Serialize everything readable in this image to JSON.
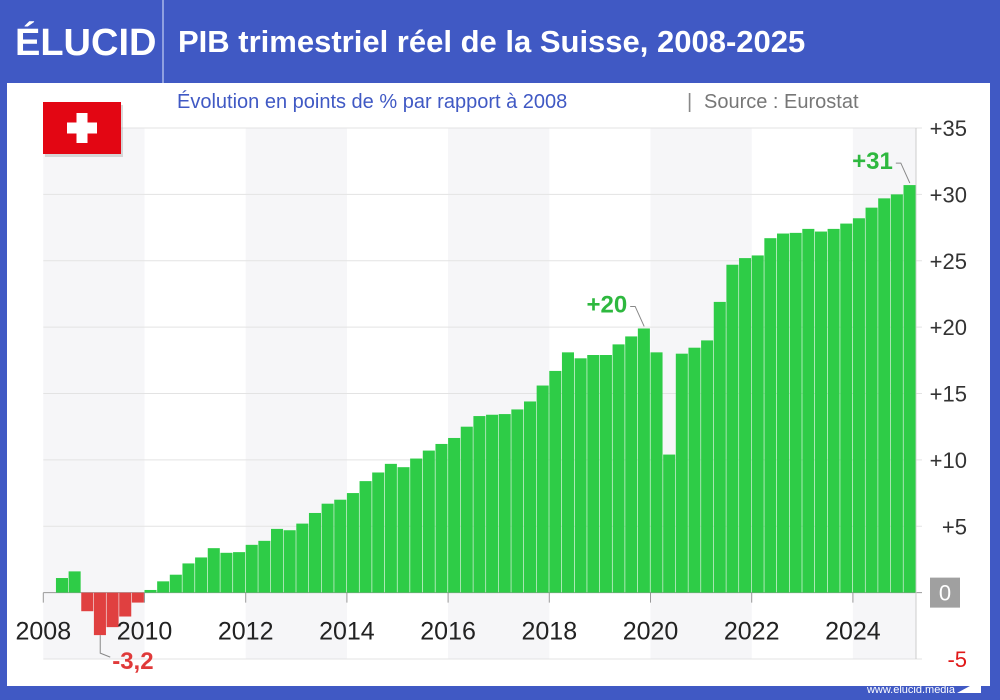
{
  "header": {
    "logo": "ÉLUCID",
    "title": "PIB trimestriel réel de la Suisse, 2008-2025"
  },
  "footer": {
    "url": "www.elucid.media"
  },
  "colors": {
    "brand": "#4059c4",
    "positive": "#2ecc47",
    "negative": "#e04040",
    "annotation_positive": "#2eb83f",
    "annotation_negative": "#e03a3a",
    "flag_red": "#e30613"
  },
  "flag_icon": "swiss-flag",
  "chart_data": {
    "type": "bar",
    "subtitle": "Évolution en points de % par rapport à 2008",
    "source": "Source : Eurostat",
    "separator": "|",
    "x_start": "2008-Q1",
    "frequency": "quarterly",
    "xticks": [
      "2008",
      "2010",
      "2012",
      "2014",
      "2016",
      "2018",
      "2020",
      "2022",
      "2024"
    ],
    "yticks": [
      "+35",
      "+30",
      "+25",
      "+20",
      "+15",
      "+10",
      "+5",
      "0",
      "-5"
    ],
    "ylim": [
      -5,
      35
    ],
    "grid": true,
    "categories": [
      "2008-Q1",
      "2008-Q2",
      "2008-Q3",
      "2008-Q4",
      "2009-Q1",
      "2009-Q2",
      "2009-Q3",
      "2009-Q4",
      "2010-Q1",
      "2010-Q2",
      "2010-Q3",
      "2010-Q4",
      "2011-Q1",
      "2011-Q2",
      "2011-Q3",
      "2011-Q4",
      "2012-Q1",
      "2012-Q2",
      "2012-Q3",
      "2012-Q4",
      "2013-Q1",
      "2013-Q2",
      "2013-Q3",
      "2013-Q4",
      "2014-Q1",
      "2014-Q2",
      "2014-Q3",
      "2014-Q4",
      "2015-Q1",
      "2015-Q2",
      "2015-Q3",
      "2015-Q4",
      "2016-Q1",
      "2016-Q2",
      "2016-Q3",
      "2016-Q4",
      "2017-Q1",
      "2017-Q2",
      "2017-Q3",
      "2017-Q4",
      "2018-Q1",
      "2018-Q2",
      "2018-Q3",
      "2018-Q4",
      "2019-Q1",
      "2019-Q2",
      "2019-Q3",
      "2019-Q4",
      "2020-Q1",
      "2020-Q2",
      "2020-Q3",
      "2020-Q4",
      "2021-Q1",
      "2021-Q2",
      "2021-Q3",
      "2021-Q4",
      "2022-Q1",
      "2022-Q2",
      "2022-Q3",
      "2022-Q4",
      "2023-Q1",
      "2023-Q2",
      "2023-Q3",
      "2023-Q4",
      "2024-Q1",
      "2024-Q2",
      "2024-Q3",
      "2024-Q4",
      "2025-Q1"
    ],
    "values": [
      0,
      1.1,
      1.6,
      -1.4,
      -3.2,
      -2.6,
      -1.8,
      -0.75,
      0.2,
      0.85,
      1.35,
      2.2,
      2.65,
      3.35,
      3.0,
      3.05,
      3.6,
      3.9,
      4.8,
      4.7,
      5.2,
      6.0,
      6.7,
      7.0,
      7.5,
      8.4,
      9.05,
      9.7,
      9.45,
      10.1,
      10.7,
      11.2,
      11.65,
      12.5,
      13.3,
      13.4,
      13.45,
      13.8,
      14.4,
      15.6,
      16.7,
      18.1,
      17.65,
      17.9,
      17.9,
      18.7,
      19.3,
      19.9,
      18.1,
      10.4,
      18.0,
      18.45,
      19.0,
      21.9,
      24.7,
      25.2,
      25.4,
      26.7,
      27.05,
      27.1,
      27.4,
      27.2,
      27.4,
      27.8,
      28.2,
      29.0,
      29.7,
      30.0,
      30.7
    ],
    "annotations": [
      {
        "label": "-3,2",
        "category": "2009-Q1"
      },
      {
        "label": "+20",
        "category": "2019-Q4"
      },
      {
        "label": "+31",
        "category": "2025-Q1"
      }
    ]
  }
}
